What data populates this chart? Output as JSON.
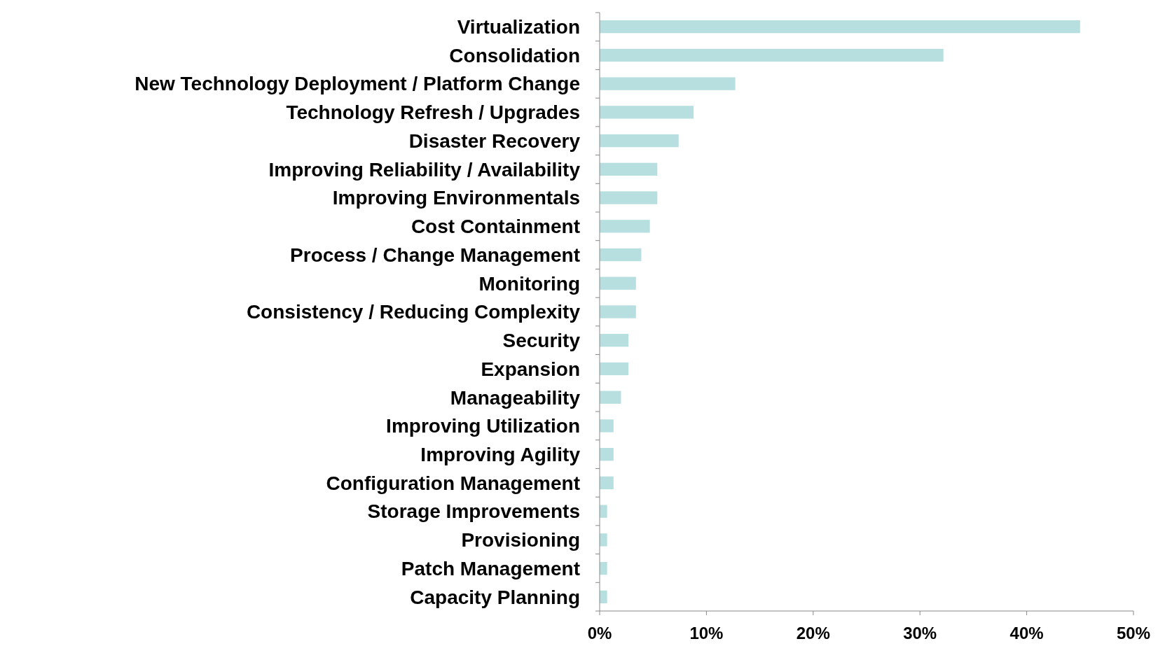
{
  "chart_data": {
    "type": "bar",
    "orientation": "horizontal",
    "categories": [
      "Virtualization",
      "Consolidation",
      "New Technology Deployment / Platform Change",
      "Technology Refresh / Upgrades",
      "Disaster Recovery",
      "Improving Reliability / Availability",
      "Improving Environmentals",
      "Cost Containment",
      "Process / Change Management",
      "Monitoring",
      "Consistency / Reducing Complexity",
      "Security",
      "Expansion",
      "Manageability",
      "Improving Utilization",
      "Improving Agility",
      "Configuration Management",
      "Storage Improvements",
      "Provisioning",
      "Patch Management",
      "Capacity Planning"
    ],
    "values": [
      45.0,
      32.2,
      12.7,
      8.8,
      7.4,
      5.4,
      5.4,
      4.7,
      3.9,
      3.4,
      3.4,
      2.7,
      2.7,
      2.0,
      1.3,
      1.3,
      1.3,
      0.7,
      0.7,
      0.7,
      0.7
    ],
    "color": "#b7dfe0",
    "xlim": [
      0,
      50
    ],
    "xticks": [
      {
        "value": 0,
        "label": "0%"
      },
      {
        "value": 10,
        "label": "10%"
      },
      {
        "value": 20,
        "label": "20%"
      },
      {
        "value": 30,
        "label": "30%"
      },
      {
        "value": 40,
        "label": "40%"
      },
      {
        "value": 50,
        "label": "50%"
      }
    ],
    "grid": false
  }
}
